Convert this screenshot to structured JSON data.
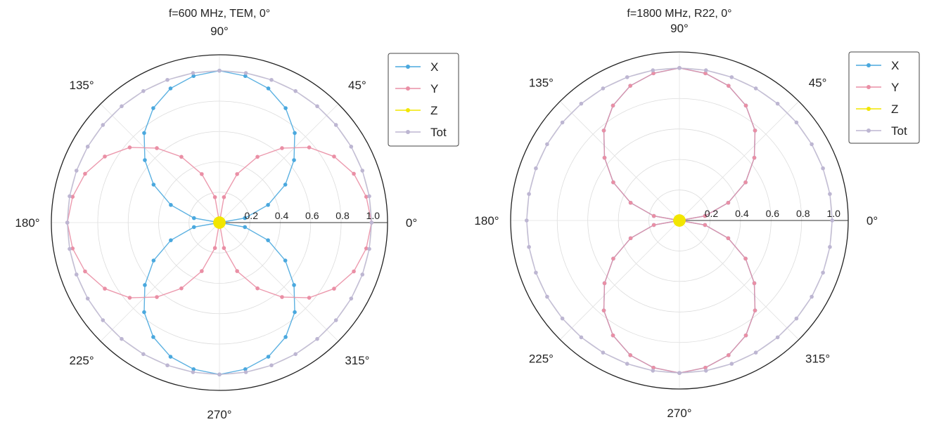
{
  "chart_data": [
    {
      "type": "polar-line",
      "title": "f=600 MHz, TEM, 0°",
      "radial_ticks": [
        "0.2",
        "0.4",
        "0.6",
        "0.8",
        "1.0"
      ],
      "radial_range": [
        0,
        1.0
      ],
      "angle_labels": [
        "0°",
        "45°",
        "90°",
        "135°",
        "180°",
        "225°",
        "270°",
        "315°"
      ],
      "angle_step_deg": 10,
      "legend": [
        "X",
        "Y",
        "Z",
        "Tot"
      ],
      "legend_position": "top-right",
      "series": [
        {
          "name": "X",
          "color": "#4aa8de",
          "values": [
            0.0,
            0.17,
            0.34,
            0.5,
            0.64,
            0.77,
            0.87,
            0.94,
            0.98,
            1.0,
            0.98,
            0.94,
            0.87,
            0.77,
            0.64,
            0.5,
            0.34,
            0.17,
            0.0,
            0.17,
            0.34,
            0.5,
            0.64,
            0.77,
            0.87,
            0.94,
            0.98,
            1.0,
            0.98,
            0.94,
            0.87,
            0.77,
            0.64,
            0.5,
            0.34,
            0.17
          ]
        },
        {
          "name": "Y",
          "color": "#ea8fa5",
          "values": [
            1.0,
            0.98,
            0.94,
            0.87,
            0.77,
            0.64,
            0.5,
            0.34,
            0.17,
            0.0,
            0.17,
            0.34,
            0.5,
            0.64,
            0.77,
            0.87,
            0.94,
            0.98,
            1.0,
            0.98,
            0.94,
            0.87,
            0.77,
            0.64,
            0.5,
            0.34,
            0.17,
            0.0,
            0.17,
            0.34,
            0.5,
            0.64,
            0.77,
            0.87,
            0.94,
            0.98
          ]
        },
        {
          "name": "Z",
          "color": "#f2e600",
          "values": [
            0.02,
            0.02,
            0.02,
            0.02,
            0.02,
            0.02,
            0.02,
            0.02,
            0.02,
            0.02,
            0.02,
            0.02,
            0.02,
            0.02,
            0.02,
            0.02,
            0.02,
            0.02,
            0.02,
            0.02,
            0.02,
            0.02,
            0.02,
            0.02,
            0.02,
            0.02,
            0.02,
            0.02,
            0.02,
            0.02,
            0.02,
            0.02,
            0.02,
            0.02,
            0.02,
            0.02
          ]
        },
        {
          "name": "Tot",
          "color": "#bdb6d2",
          "values": [
            1.0,
            1.0,
            1.0,
            1.0,
            1.0,
            1.0,
            1.0,
            1.0,
            1.0,
            1.0,
            1.0,
            1.0,
            1.0,
            1.0,
            1.0,
            1.0,
            1.0,
            1.0,
            1.0,
            1.0,
            1.0,
            1.0,
            1.0,
            1.0,
            1.0,
            1.0,
            1.0,
            1.0,
            1.0,
            1.0,
            1.0,
            1.0,
            1.0,
            1.0,
            1.0,
            1.0
          ]
        }
      ]
    },
    {
      "type": "polar-line",
      "title": "f=1800 MHz, R22, 0°",
      "radial_ticks": [
        "0.2",
        "0.4",
        "0.6",
        "0.8",
        "1.0"
      ],
      "radial_range": [
        0,
        1.0
      ],
      "angle_labels": [
        "0°",
        "45°",
        "90°",
        "135°",
        "180°",
        "225°",
        "270°",
        "315°"
      ],
      "angle_step_deg": 10,
      "legend": [
        "X",
        "Y",
        "Z",
        "Tot"
      ],
      "legend_position": "top-right",
      "series": [
        {
          "name": "X",
          "color": "#4aa8de",
          "values": [
            0.0,
            0.17,
            0.34,
            0.5,
            0.64,
            0.77,
            0.87,
            0.94,
            0.98,
            1.0,
            0.98,
            0.94,
            0.87,
            0.77,
            0.64,
            0.5,
            0.34,
            0.17,
            0.0,
            0.17,
            0.34,
            0.5,
            0.64,
            0.77,
            0.87,
            0.94,
            0.98,
            1.0,
            0.98,
            0.94,
            0.87,
            0.77,
            0.64,
            0.5,
            0.34,
            0.17
          ]
        },
        {
          "name": "Y",
          "color": "#ea8fa5",
          "values": [
            0.0,
            0.17,
            0.34,
            0.5,
            0.64,
            0.77,
            0.87,
            0.94,
            0.98,
            1.0,
            0.98,
            0.94,
            0.87,
            0.77,
            0.64,
            0.5,
            0.34,
            0.17,
            0.0,
            0.17,
            0.34,
            0.5,
            0.64,
            0.77,
            0.87,
            0.94,
            0.98,
            1.0,
            0.98,
            0.94,
            0.87,
            0.77,
            0.64,
            0.5,
            0.34,
            0.17
          ]
        },
        {
          "name": "Z",
          "color": "#f2e600",
          "values": [
            0.02,
            0.02,
            0.02,
            0.02,
            0.02,
            0.02,
            0.02,
            0.02,
            0.02,
            0.02,
            0.02,
            0.02,
            0.02,
            0.02,
            0.02,
            0.02,
            0.02,
            0.02,
            0.02,
            0.02,
            0.02,
            0.02,
            0.02,
            0.02,
            0.02,
            0.02,
            0.02,
            0.02,
            0.02,
            0.02,
            0.02,
            0.02,
            0.02,
            0.02,
            0.02,
            0.02
          ]
        },
        {
          "name": "Tot",
          "color": "#bdb6d2",
          "values": [
            1.0,
            1.0,
            1.0,
            1.0,
            1.0,
            1.0,
            1.0,
            1.0,
            1.0,
            1.0,
            1.0,
            1.0,
            1.0,
            1.0,
            1.0,
            1.0,
            1.0,
            1.0,
            1.0,
            1.0,
            1.0,
            1.0,
            1.0,
            1.0,
            1.0,
            1.0,
            1.0,
            1.0,
            1.0,
            1.0,
            1.0,
            1.0,
            1.0,
            1.0,
            1.0,
            1.0
          ]
        }
      ]
    }
  ]
}
